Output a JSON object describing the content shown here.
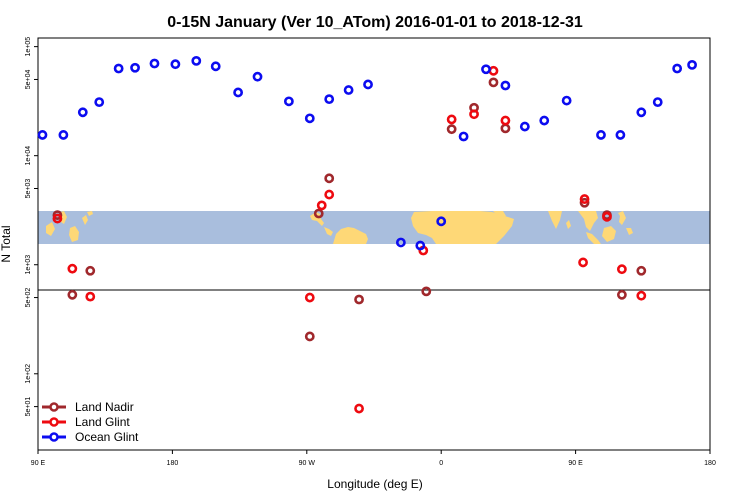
{
  "chart_data": {
    "type": "scatter",
    "title": "0-15N January (Ver 10_ATom)   2016-01-01 to 2018-12-31",
    "xlabel": "Longitude (deg E)",
    "ylabel": "N Total",
    "x_ticks": [
      "90 E",
      "180",
      "90 W",
      "0",
      "90 E",
      "180"
    ],
    "y_ticks": [
      "5e+01",
      "1e+02",
      "5e+02",
      "1e+03",
      "5e+03",
      "1e+04",
      "5e+04",
      "1e+05"
    ],
    "legend_position": "bottom-left",
    "series": [
      {
        "name": "Land Nadir",
        "color": "#a0282c",
        "points": [
          {
            "x": 103,
            "y": 2850
          },
          {
            "x": 113,
            "y": 530
          },
          {
            "x": 125,
            "y": 880
          },
          {
            "x": 272,
            "y": 220
          },
          {
            "x": 278,
            "y": 2950
          },
          {
            "x": 285,
            "y": 6200
          },
          {
            "x": 305,
            "y": 480
          },
          {
            "x": 350,
            "y": 570
          },
          {
            "x": 367,
            "y": 17500
          },
          {
            "x": 382,
            "y": 27500
          },
          {
            "x": 395,
            "y": 47000
          },
          {
            "x": 403,
            "y": 17800
          },
          {
            "x": 456,
            "y": 3700
          },
          {
            "x": 471,
            "y": 2850
          },
          {
            "x": 481,
            "y": 530
          },
          {
            "x": 494,
            "y": 880
          }
        ]
      },
      {
        "name": "Land Glint",
        "color": "#ee0a10",
        "points": [
          {
            "x": 103,
            "y": 2650
          },
          {
            "x": 113,
            "y": 920
          },
          {
            "x": 125,
            "y": 510
          },
          {
            "x": 272,
            "y": 500
          },
          {
            "x": 280,
            "y": 3500
          },
          {
            "x": 285,
            "y": 4400
          },
          {
            "x": 305,
            "y": 48
          },
          {
            "x": 348,
            "y": 1350
          },
          {
            "x": 367,
            "y": 21500
          },
          {
            "x": 382,
            "y": 24000
          },
          {
            "x": 395,
            "y": 60000
          },
          {
            "x": 403,
            "y": 21000
          },
          {
            "x": 455,
            "y": 1050
          },
          {
            "x": 456,
            "y": 4000
          },
          {
            "x": 471,
            "y": 2750
          },
          {
            "x": 481,
            "y": 910
          },
          {
            "x": 494,
            "y": 520
          }
        ]
      },
      {
        "name": "Ocean Glint",
        "color": "#0c0cf0",
        "points": [
          {
            "x": 93,
            "y": 15500
          },
          {
            "x": 107,
            "y": 15500
          },
          {
            "x": 120,
            "y": 25000
          },
          {
            "x": 131,
            "y": 31000
          },
          {
            "x": 144,
            "y": 63000
          },
          {
            "x": 155,
            "y": 64000
          },
          {
            "x": 168,
            "y": 70000
          },
          {
            "x": 182,
            "y": 69000
          },
          {
            "x": 196,
            "y": 74000
          },
          {
            "x": 209,
            "y": 66000
          },
          {
            "x": 224,
            "y": 38000
          },
          {
            "x": 237,
            "y": 53000
          },
          {
            "x": 258,
            "y": 31500
          },
          {
            "x": 272,
            "y": 22000
          },
          {
            "x": 285,
            "y": 33000
          },
          {
            "x": 298,
            "y": 40000
          },
          {
            "x": 311,
            "y": 45000
          },
          {
            "x": 333,
            "y": 1600
          },
          {
            "x": 346,
            "y": 1500
          },
          {
            "x": 360,
            "y": 2500
          },
          {
            "x": 375,
            "y": 15000
          },
          {
            "x": 390,
            "y": 62000
          },
          {
            "x": 403,
            "y": 44000
          },
          {
            "x": 416,
            "y": 18500
          },
          {
            "x": 429,
            "y": 21000
          },
          {
            "x": 444,
            "y": 32000
          },
          {
            "x": 467,
            "y": 15500
          },
          {
            "x": 480,
            "y": 15500
          },
          {
            "x": 494,
            "y": 25000
          },
          {
            "x": 505,
            "y": 31000
          },
          {
            "x": 518,
            "y": 63000
          },
          {
            "x": 528,
            "y": 68000
          }
        ]
      }
    ]
  }
}
